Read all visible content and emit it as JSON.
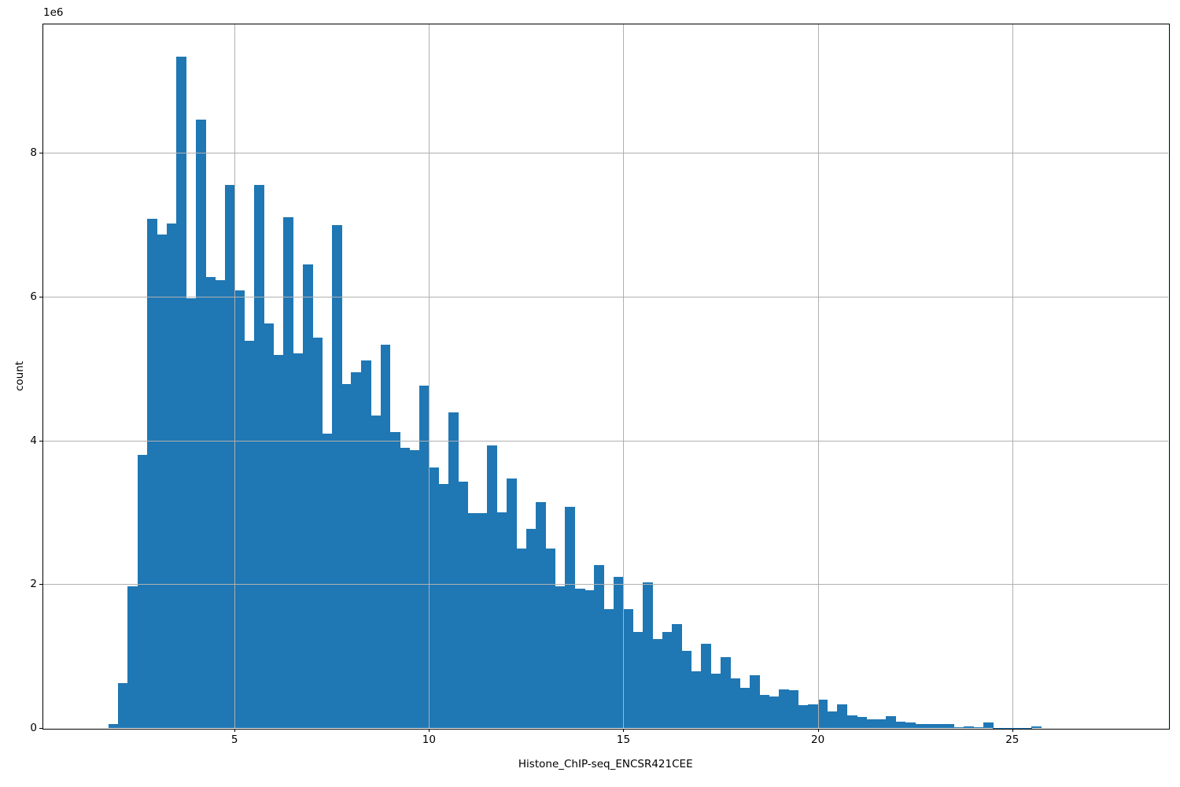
{
  "figure": {
    "background": "#ffffff",
    "text_color": "#000000"
  },
  "chart_data": {
    "type": "bar",
    "subtype": "histogram",
    "title": "",
    "xlabel": "Histone_ChIP-seq_ENCSR421CEE",
    "ylabel": "count",
    "offset_text": "1e6",
    "bar_color": "#1f77b4",
    "grid_color": "#b0b0b0",
    "spine_color": "#000000",
    "grid": true,
    "legend_position": "none",
    "bin_start": 1.75,
    "bin_width": 0.25,
    "y_scale": 1000000,
    "values_millions": [
      0.06,
      0.62,
      1.97,
      3.8,
      7.08,
      6.86,
      7.02,
      9.33,
      5.97,
      8.46,
      6.27,
      6.23,
      7.55,
      6.09,
      5.38,
      7.55,
      5.62,
      5.19,
      7.1,
      5.21,
      6.45,
      5.43,
      4.09,
      6.99,
      4.78,
      4.95,
      5.11,
      4.34,
      5.33,
      4.11,
      3.9,
      3.86,
      4.76,
      3.62,
      3.39,
      4.39,
      3.43,
      2.99,
      2.99,
      3.93,
      3.0,
      3.47,
      2.5,
      2.77,
      3.14,
      2.49,
      1.97,
      3.07,
      1.94,
      1.92,
      2.26,
      1.65,
      2.1,
      1.65,
      1.33,
      2.03,
      1.24,
      1.34,
      1.45,
      1.07,
      0.79,
      1.17,
      0.75,
      0.98,
      0.69,
      0.56,
      0.73,
      0.46,
      0.44,
      0.54,
      0.53,
      0.32,
      0.33,
      0.39,
      0.23,
      0.33,
      0.17,
      0.155,
      0.12,
      0.125,
      0.16,
      0.09,
      0.08,
      0.055,
      0.05,
      0.05,
      0.05,
      0.008,
      0.025,
      0.008,
      0.08,
      0.005,
      0.005,
      0.005,
      0.005,
      0.02
    ],
    "xticks": [
      5,
      10,
      15,
      20,
      25
    ],
    "yticks_millions": [
      0,
      2,
      4,
      6,
      8
    ],
    "xlim": [
      0.08,
      29.0
    ],
    "ylim_millions": [
      0,
      9.784
    ]
  }
}
